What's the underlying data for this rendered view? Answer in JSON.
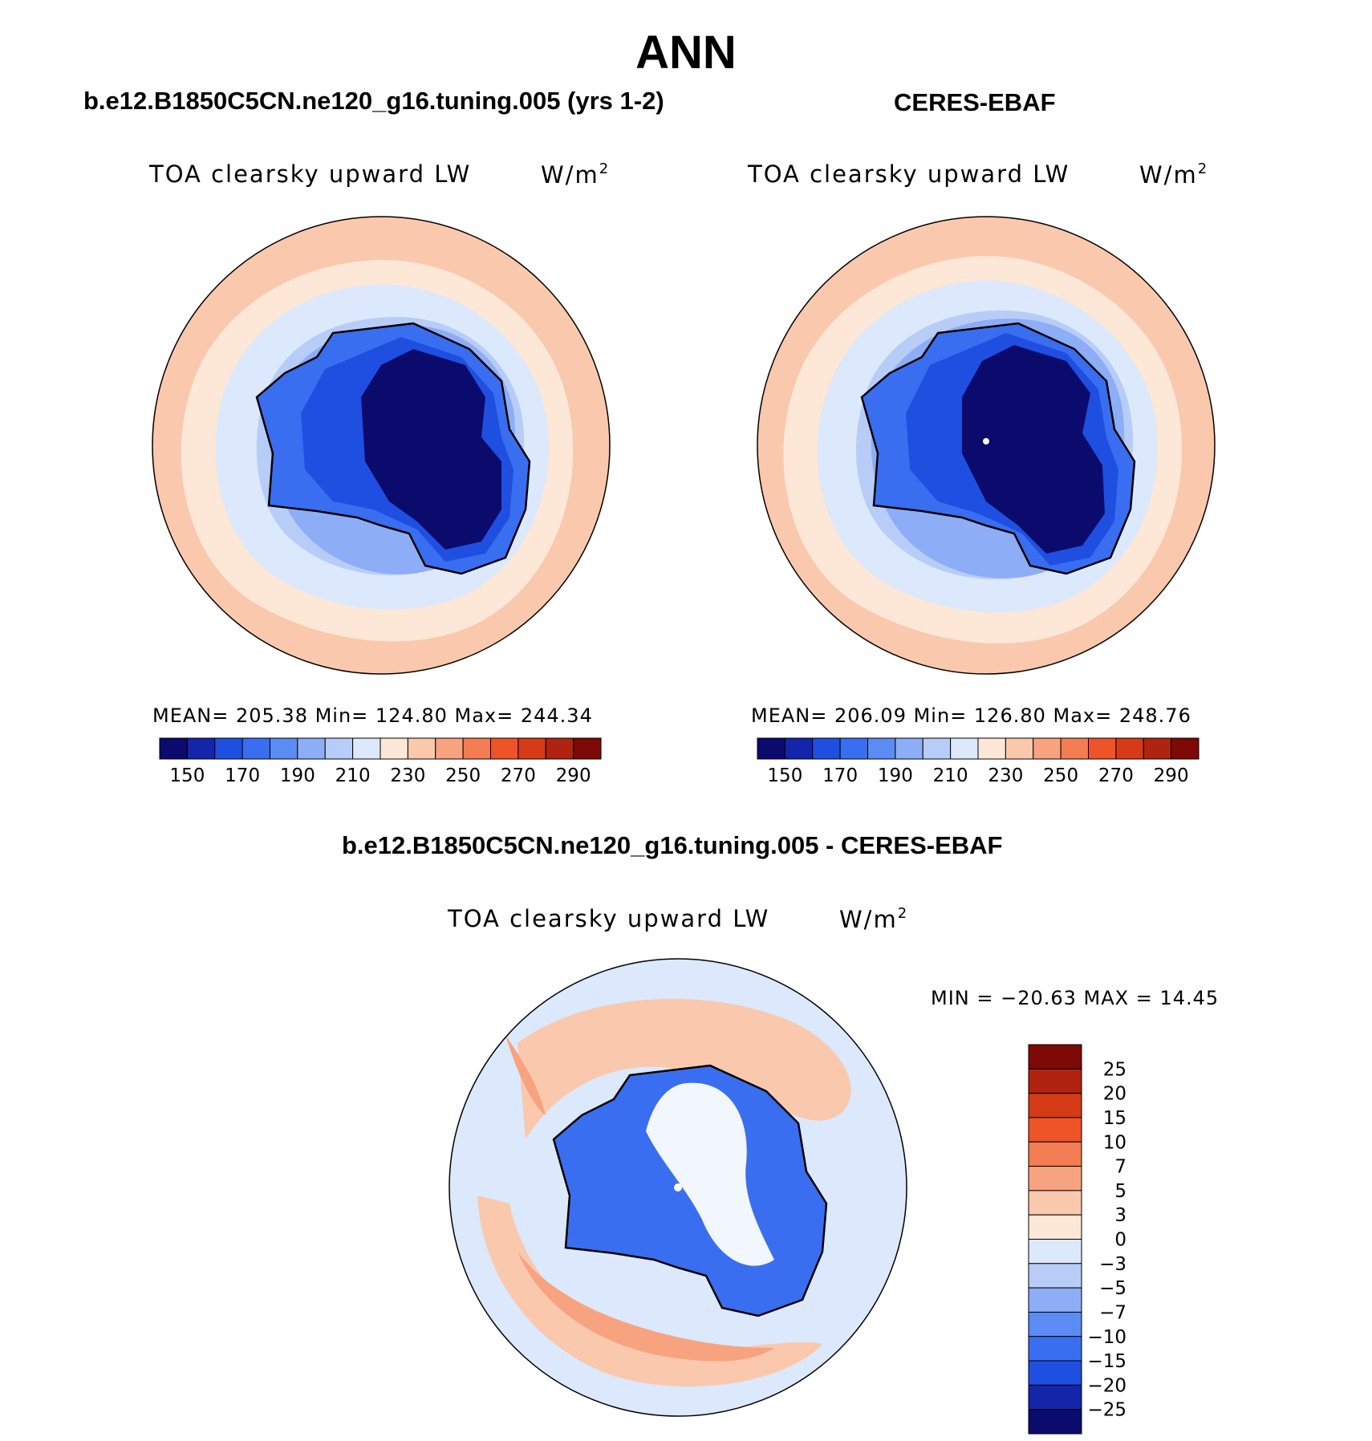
{
  "figure": {
    "season": "ANN"
  },
  "panels": [
    {
      "case_title": "b.e12.B1850C5CN.ne120_g16.tuning.005 (yrs 1-2)",
      "variable": "TOA clearsky upward LW",
      "units": "W/m",
      "units_sup": "2",
      "stats": "MEAN= 205.38   Min= 124.80   Max= 244.34"
    },
    {
      "case_title": "CERES-EBAF",
      "variable": "TOA clearsky upward LW",
      "units": "W/m",
      "units_sup": "2",
      "stats": "MEAN= 206.09   Min= 126.80   Max= 248.76"
    }
  ],
  "diff_panel": {
    "case_title": "b.e12.B1850C5CN.ne120_g16.tuning.005 - CERES-EBAF",
    "variable": "TOA clearsky upward LW",
    "units": "W/m",
    "units_sup": "2",
    "stats": "MIN = −20.63 MAX =   14.45"
  },
  "colorbars": {
    "horizontal": {
      "colors": [
        "#0b0b6e",
        "#1325a8",
        "#1f4fe0",
        "#3a6ef0",
        "#5a8cf4",
        "#8daef6",
        "#b7cdf8",
        "#dce8fb",
        "#fde7d7",
        "#fac8ad",
        "#f7a37f",
        "#f47c52",
        "#ee5428",
        "#d73a16",
        "#b02310",
        "#7d0a06"
      ],
      "tick_labels": [
        "150",
        "170",
        "190",
        "210",
        "230",
        "250",
        "270",
        "290"
      ]
    },
    "vertical": {
      "colors_top_to_bottom": [
        "#7d0a06",
        "#b02310",
        "#d73a16",
        "#ee5428",
        "#f47c52",
        "#f7a37f",
        "#fac8ad",
        "#fde7d7",
        "#dce8fb",
        "#b7cdf8",
        "#8daef6",
        "#5a8cf4",
        "#3a6ef0",
        "#1f4fe0",
        "#1325a8",
        "#0b0b6e"
      ],
      "tick_labels": [
        "25",
        "20",
        "15",
        "10",
        "7",
        "5",
        "3",
        "0",
        "−3",
        "−5",
        "−7",
        "−10",
        "−15",
        "−20",
        "−25"
      ]
    }
  },
  "map_colors": {
    "outer": "#fac8ad",
    "mid_warm": "#fde7d7",
    "mid_cool": "#dce8fb",
    "inner_cool": "#b7cdf8",
    "inner_blue": "#8daef6",
    "coast_blue": "#3a6ef0",
    "plateau_blue": "#1f4fe0",
    "plateau_core": "#0b0b6e",
    "diff_bg": "#dce8fb",
    "diff_warm": "#fac8ad",
    "diff_hot": "#f7a37f",
    "diff_ice": "#3a6ef0",
    "diff_white": "#f2f6fd"
  }
}
